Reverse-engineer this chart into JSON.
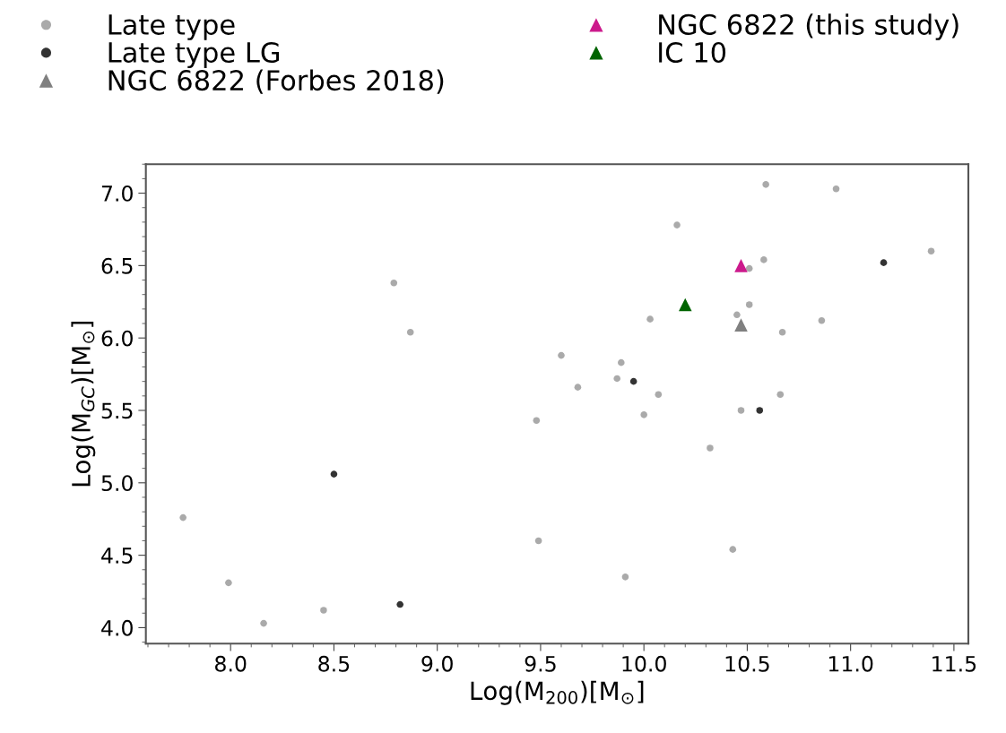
{
  "chart_data": {
    "type": "scatter",
    "xlabel": "Log(M$_{200}$)[M$_{⊙}$]",
    "ylabel": "Log(M$_{GC}$)[M$_{⊙}$]",
    "xlim": [
      7.59,
      11.57
    ],
    "ylim": [
      3.89,
      7.2
    ],
    "xticks": [
      {
        "value": 8.0,
        "label": "8.0"
      },
      8.5,
      {
        "value": 9.0,
        "label": "9.0"
      },
      9.5,
      {
        "value": 10.0,
        "label": "10.0"
      },
      10.5,
      {
        "value": 11.0,
        "label": "11.0"
      },
      11.5
    ],
    "yticks": [
      {
        "value": 4.0,
        "label": "4.0"
      },
      4.5,
      {
        "value": 5.0,
        "label": "5.0"
      },
      5.5,
      {
        "value": 6.0,
        "label": "6.0"
      },
      6.5,
      {
        "value": 7.0,
        "label": "7.0"
      }
    ],
    "grid": false,
    "legend": "top",
    "series": [
      {
        "name": "Late type",
        "color": "#aaaaaa",
        "marker": "circle",
        "x": [
          8.79,
          8.87,
          9.6,
          9.48,
          7.77,
          9.49,
          7.99,
          8.16,
          8.45,
          10.59,
          10.93,
          10.16,
          11.39,
          10.58,
          10.51,
          10.51,
          10.03,
          10.45,
          10.86,
          10.67,
          9.89,
          9.87,
          9.68,
          10.07,
          10.0,
          10.47,
          10.66,
          10.32,
          10.43,
          9.91
        ],
        "values": [
          6.38,
          6.04,
          5.88,
          5.43,
          4.76,
          4.6,
          4.31,
          4.03,
          4.12,
          7.06,
          7.03,
          6.78,
          6.6,
          6.54,
          6.48,
          6.23,
          6.13,
          6.16,
          6.12,
          6.04,
          5.83,
          5.72,
          5.66,
          5.61,
          5.47,
          5.5,
          5.61,
          5.24,
          4.54,
          4.35
        ]
      },
      {
        "name": "Late type LG",
        "color": "#333333",
        "marker": "circle",
        "x": [
          8.5,
          8.82,
          11.16,
          9.95,
          10.56
        ],
        "values": [
          5.06,
          4.16,
          6.52,
          5.7,
          5.5
        ]
      },
      {
        "name": "NGC 6822 (Forbes 2018)",
        "color": "#808080",
        "marker": "triangle",
        "x": [
          10.47
        ],
        "values": [
          6.09
        ]
      },
      {
        "name": "NGC 6822 (this study)",
        "color": "#cc1a8c",
        "marker": "triangle",
        "x": [
          10.47
        ],
        "values": [
          6.5
        ]
      },
      {
        "name": "IC 10",
        "color": "#006400",
        "marker": "triangle",
        "x": [
          10.2
        ],
        "values": [
          6.23
        ]
      }
    ]
  }
}
